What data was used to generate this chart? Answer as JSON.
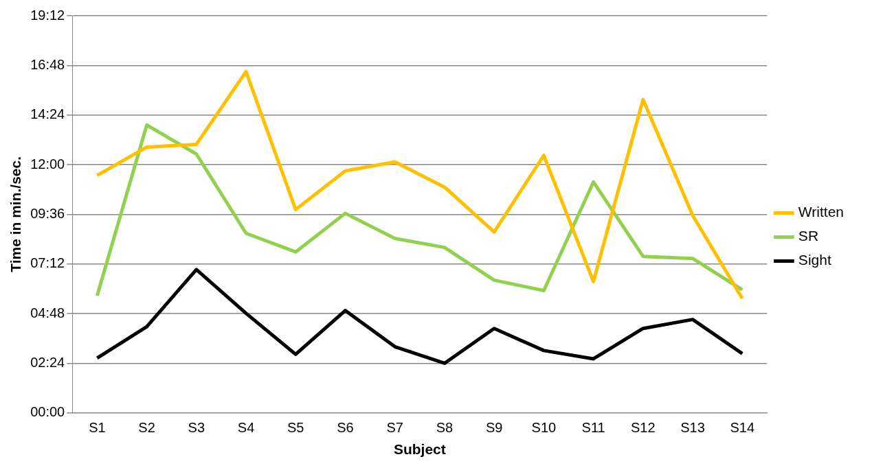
{
  "chart_data": {
    "type": "line",
    "xlabel": "Subject",
    "ylabel": "Time in min./sec.",
    "categories": [
      "S1",
      "S2",
      "S3",
      "S4",
      "S5",
      "S6",
      "S7",
      "S8",
      "S9",
      "S10",
      "S11",
      "S12",
      "S13",
      "S14"
    ],
    "series": [
      {
        "name": "Written",
        "color": "#ffc000",
        "values": [
          689,
          771,
          779,
          990,
          590,
          702,
          728,
          655,
          525,
          747,
          381,
          909,
          573,
          332
        ]
      },
      {
        "name": "SR",
        "color": "#92d050",
        "values": [
          340,
          835,
          751,
          521,
          467,
          579,
          506,
          480,
          385,
          355,
          670,
          454,
          448,
          357
        ]
      },
      {
        "name": "Sight",
        "color": "#000000",
        "values": [
          159,
          250,
          416,
          289,
          170,
          297,
          192,
          144,
          245,
          181,
          157,
          245,
          271,
          172
        ]
      }
    ],
    "ylim": [
      0,
      1152
    ],
    "yticks": [
      {
        "value": 0,
        "label": "00:00"
      },
      {
        "value": 144,
        "label": "02:24"
      },
      {
        "value": 288,
        "label": "04:48"
      },
      {
        "value": 432,
        "label": "07:12"
      },
      {
        "value": 576,
        "label": "09:36"
      },
      {
        "value": 720,
        "label": "12:00"
      },
      {
        "value": 864,
        "label": "14:24"
      },
      {
        "value": 1008,
        "label": "16:48"
      },
      {
        "value": 1152,
        "label": "19:12"
      }
    ],
    "grid": "y",
    "legend": "right",
    "marker": "none",
    "line_style": "solid"
  }
}
